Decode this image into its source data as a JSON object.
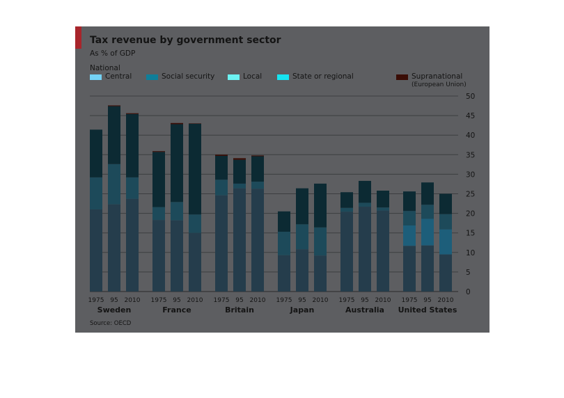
{
  "chart_data": {
    "type": "bar",
    "stacked": true,
    "title": "Tax revenue by government sector",
    "subtitle": "As % of GDP",
    "legend_heading": "National",
    "source": "Source: OECD",
    "ylim": [
      0,
      50
    ],
    "yticks": [
      "0",
      "5",
      "10",
      "15",
      "20",
      "25",
      "30",
      "35",
      "40",
      "45",
      "50"
    ],
    "year_labels": [
      "1975",
      "95",
      "2010"
    ],
    "legend": [
      {
        "key": "central",
        "name": "Central",
        "color": "#74d2f5"
      },
      {
        "key": "social_security",
        "name": "Social security",
        "color": "#0f7e99"
      },
      {
        "key": "local",
        "name": "Local",
        "color": "#6cf2f2"
      },
      {
        "key": "state",
        "name": "State or regional",
        "color": "#16e4f0"
      },
      {
        "key": "supranational",
        "name": "Supranational",
        "name2": "(European Union)",
        "color": "#3a0d06"
      }
    ],
    "series_order": [
      "central",
      "state",
      "local",
      "social_security",
      "supranational"
    ],
    "colors": {
      "central": "#253d4c",
      "state": "#1d5e7a",
      "local": "#1d4a5a",
      "social_security": "#0c2a33",
      "supranational": "#3a0d06"
    },
    "countries": [
      {
        "name": "Sweden",
        "bars": [
          {
            "year": "1975",
            "central": 21.0,
            "state": 0,
            "local": 8.2,
            "social_security": 12.2,
            "supranational": 0
          },
          {
            "year": "95",
            "central": 22.3,
            "state": 0,
            "local": 10.3,
            "social_security": 14.8,
            "supranational": 0.2
          },
          {
            "year": "2010",
            "central": 23.7,
            "state": 0,
            "local": 5.5,
            "social_security": 16.2,
            "supranational": 0.2
          }
        ]
      },
      {
        "name": "France",
        "bars": [
          {
            "year": "1975",
            "central": 18.3,
            "state": 0,
            "local": 3.3,
            "social_security": 14.1,
            "supranational": 0.2
          },
          {
            "year": "95",
            "central": 18.2,
            "state": 0,
            "local": 4.7,
            "social_security": 19.9,
            "supranational": 0.3
          },
          {
            "year": "2010",
            "central": 15.0,
            "state": 0,
            "local": 4.7,
            "social_security": 23.2,
            "supranational": 0.1
          }
        ]
      },
      {
        "name": "Britain",
        "bars": [
          {
            "year": "1975",
            "central": 24.6,
            "state": 0,
            "local": 4.0,
            "social_security": 6.1,
            "supranational": 0.3
          },
          {
            "year": "95",
            "central": 26.4,
            "state": 0,
            "local": 1.2,
            "social_security": 6.1,
            "supranational": 0.4
          },
          {
            "year": "2010",
            "central": 26.3,
            "state": 0,
            "local": 1.8,
            "social_security": 6.5,
            "supranational": 0.2
          }
        ]
      },
      {
        "name": "Japan",
        "bars": [
          {
            "year": "1975",
            "central": 9.3,
            "state": 0,
            "local": 6.0,
            "social_security": 5.2,
            "supranational": 0
          },
          {
            "year": "95",
            "central": 10.8,
            "state": 0,
            "local": 6.4,
            "social_security": 9.2,
            "supranational": 0
          },
          {
            "year": "2010",
            "central": 9.2,
            "state": 0,
            "local": 7.2,
            "social_security": 11.2,
            "supranational": 0
          }
        ]
      },
      {
        "name": "Australia",
        "bars": [
          {
            "year": "1975",
            "central": 20.4,
            "state": 0,
            "local": 1.0,
            "social_security": 4.0,
            "supranational": 0
          },
          {
            "year": "95",
            "central": 21.7,
            "state": 0,
            "local": 1.0,
            "social_security": 5.6,
            "supranational": 0
          },
          {
            "year": "2010",
            "central": 20.7,
            "state": 0,
            "local": 0.8,
            "social_security": 4.3,
            "supranational": 0
          }
        ]
      },
      {
        "name": "United States",
        "bars": [
          {
            "year": "1975",
            "central": 11.7,
            "state": 5.2,
            "local": 3.7,
            "social_security": 5.0,
            "supranational": 0
          },
          {
            "year": "95",
            "central": 11.8,
            "state": 6.8,
            "local": 3.6,
            "social_security": 5.7,
            "supranational": 0
          },
          {
            "year": "2010",
            "central": 9.5,
            "state": 6.4,
            "local": 3.9,
            "social_security": 5.2,
            "supranational": 0
          }
        ]
      }
    ]
  }
}
